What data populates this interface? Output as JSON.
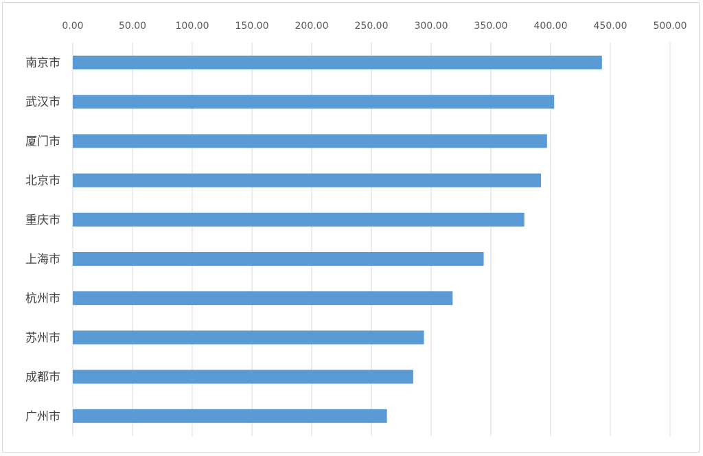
{
  "chart_data": {
    "type": "bar",
    "orientation": "horizontal",
    "categories": [
      "南京市",
      "武汉市",
      "厦门市",
      "北京市",
      "重庆市",
      "上海市",
      "杭州市",
      "苏州市",
      "成都市",
      "广州市"
    ],
    "values": [
      443,
      403,
      397,
      392,
      378,
      344,
      318,
      294,
      285,
      263
    ],
    "x_ticks": [
      "0.00",
      "50.00",
      "100.00",
      "150.00",
      "200.00",
      "250.00",
      "300.00",
      "350.00",
      "400.00",
      "450.00",
      "500.00"
    ],
    "xlim": [
      0,
      500
    ],
    "x_axis_position": "top",
    "grid": true,
    "bar_color": "#5b9bd5",
    "title": "",
    "xlabel": "",
    "ylabel": ""
  }
}
